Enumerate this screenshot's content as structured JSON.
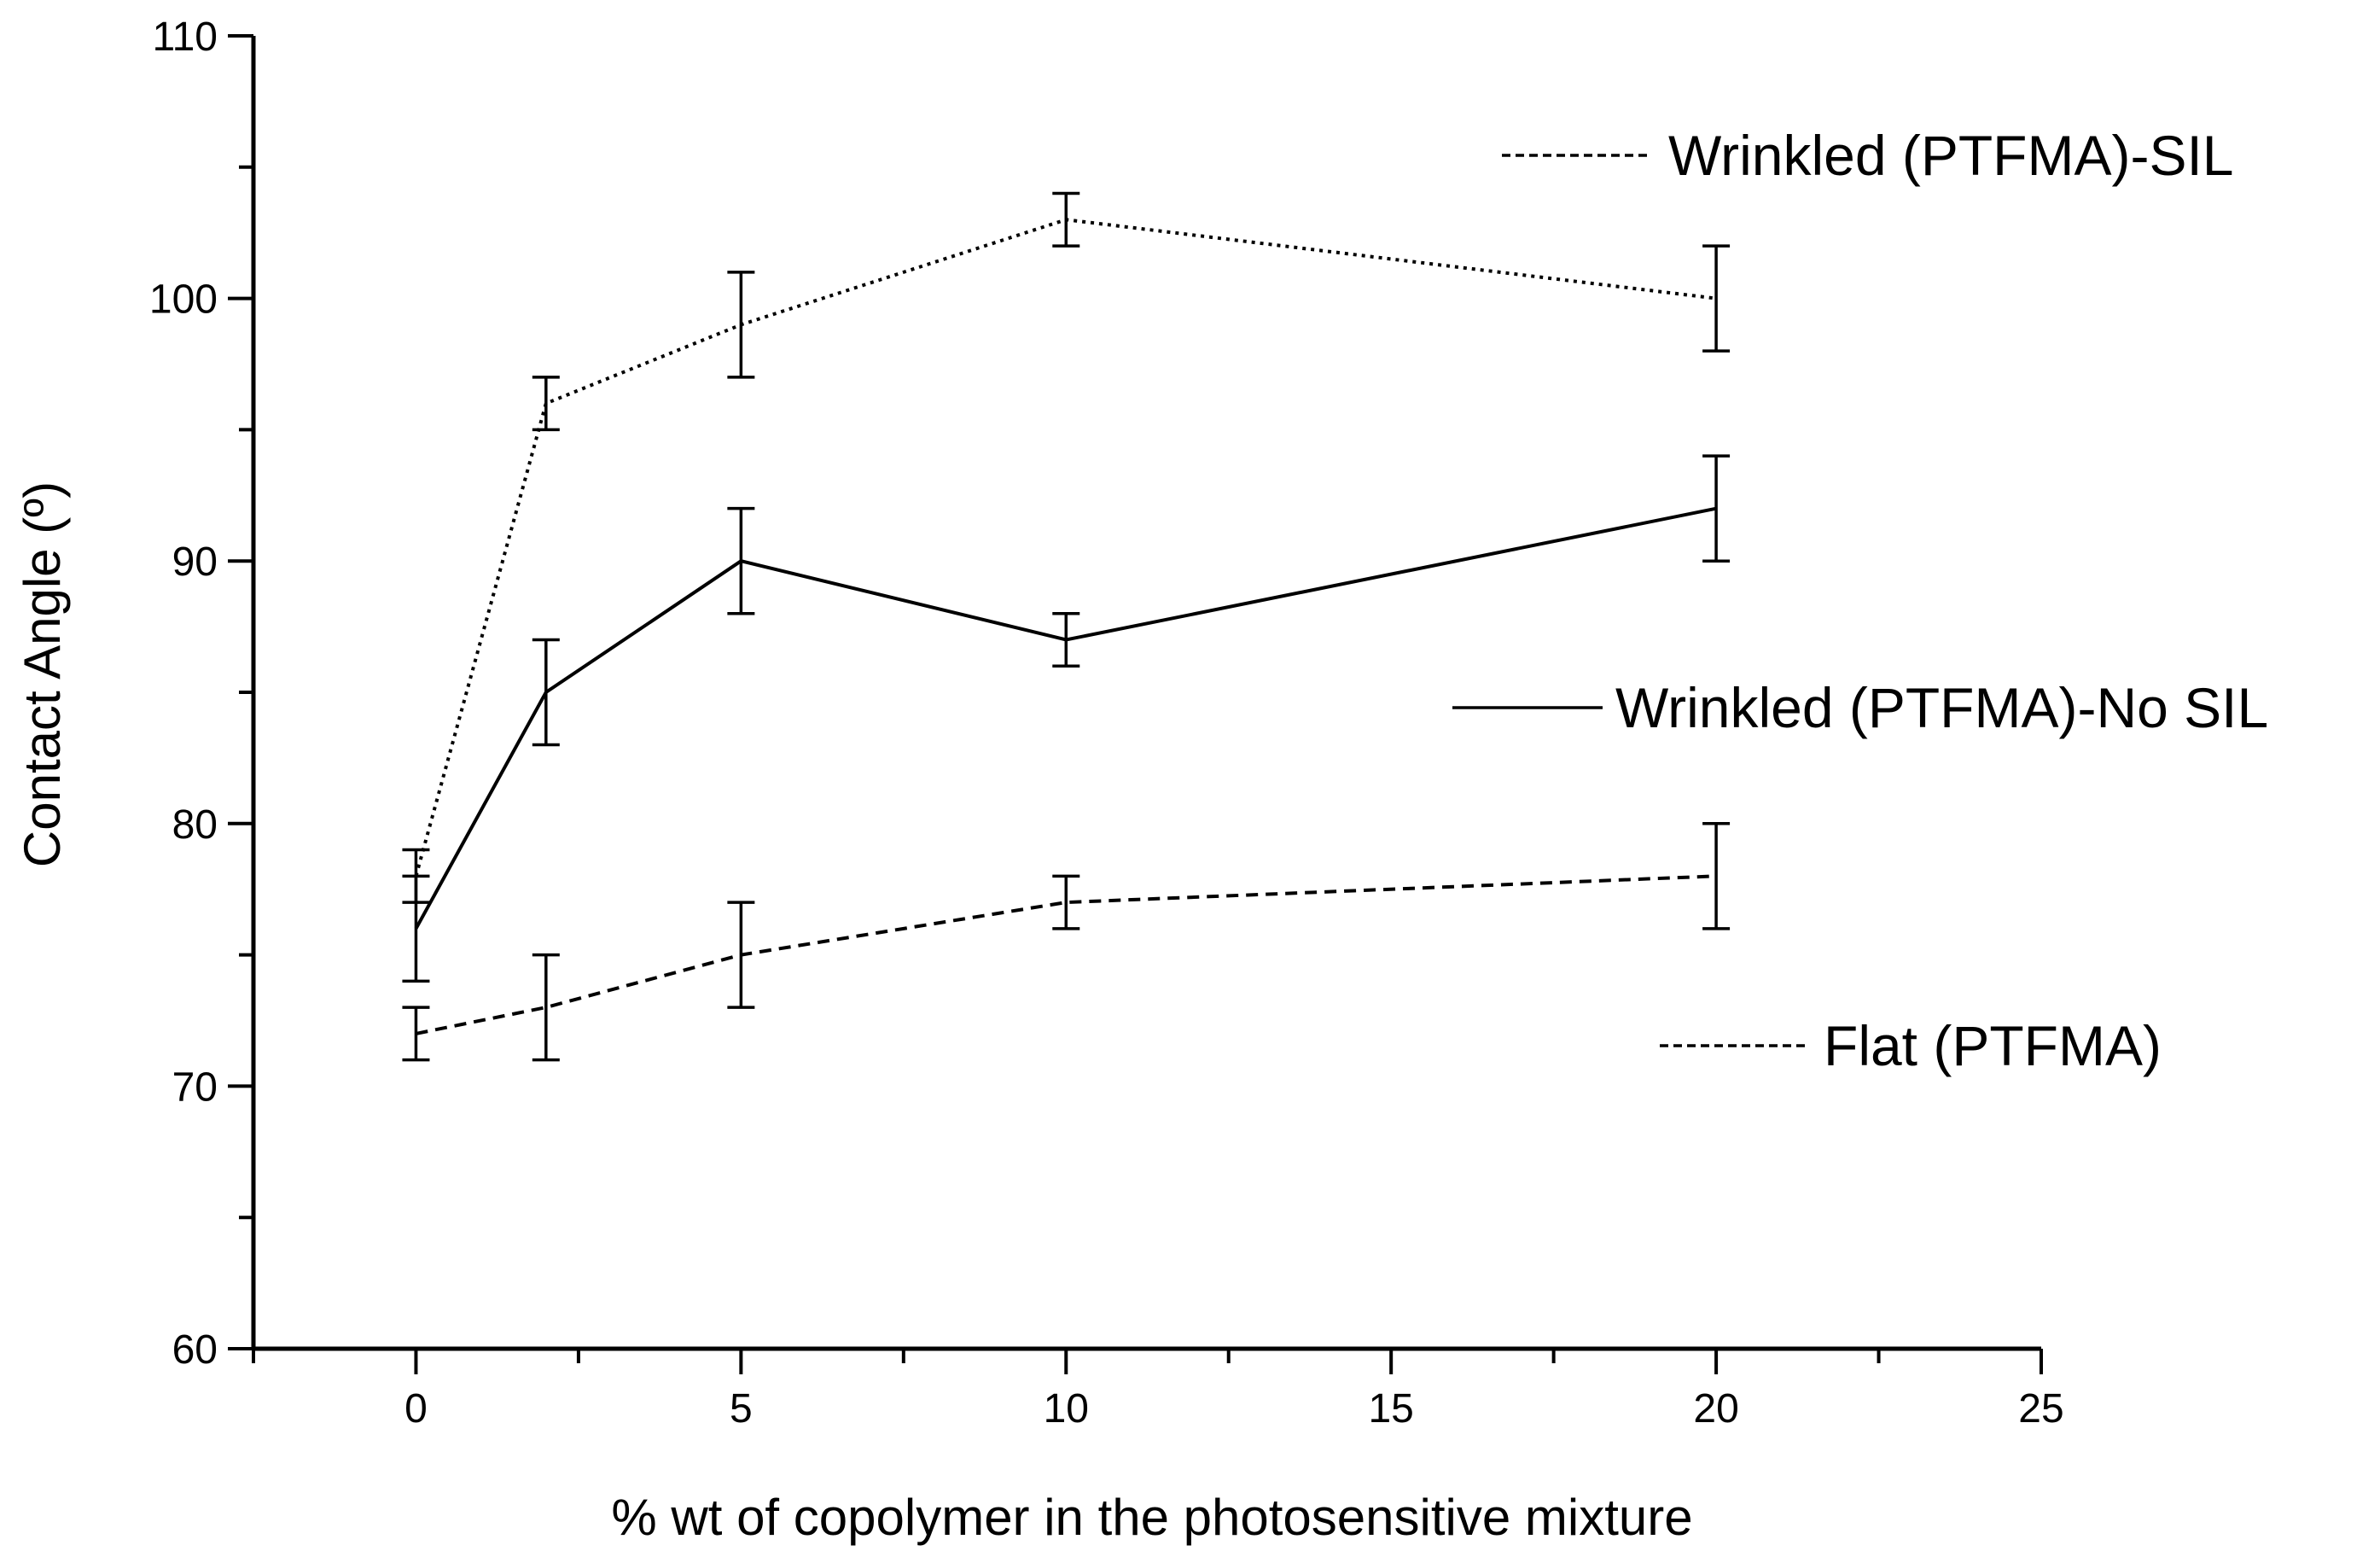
{
  "chart_data": {
    "type": "line",
    "title": "",
    "xlabel": "% wt of copolymer in the photosensitive mixture",
    "ylabel": "Contact Angle (º)",
    "xlim": [
      -2.5,
      25
    ],
    "ylim": [
      60,
      110
    ],
    "xticks": [
      0,
      5,
      10,
      15,
      20,
      25
    ],
    "yticks": [
      60,
      70,
      80,
      90,
      100,
      110
    ],
    "grid": false,
    "legend": "right, labels beside lines",
    "series": [
      {
        "name": "Wrinkled (PTFMA)-SIL",
        "line_style": "dotted",
        "x": [
          0,
          2,
          5,
          10,
          20
        ],
        "y": [
          78,
          96,
          99,
          103,
          100
        ],
        "error": [
          1,
          1,
          2,
          1,
          2
        ]
      },
      {
        "name": "Wrinkled (PTFMA)-No SIL",
        "line_style": "solid",
        "x": [
          0,
          2,
          5,
          10,
          20
        ],
        "y": [
          76,
          85,
          90,
          87,
          92
        ],
        "error": [
          2,
          2,
          2,
          1,
          2
        ]
      },
      {
        "name": "Flat (PTFMA)",
        "line_style": "dashed",
        "x": [
          0,
          2,
          5,
          10,
          20
        ],
        "y": [
          72,
          73,
          75,
          77,
          78
        ],
        "error": [
          1,
          2,
          2,
          1,
          2
        ]
      }
    ]
  }
}
